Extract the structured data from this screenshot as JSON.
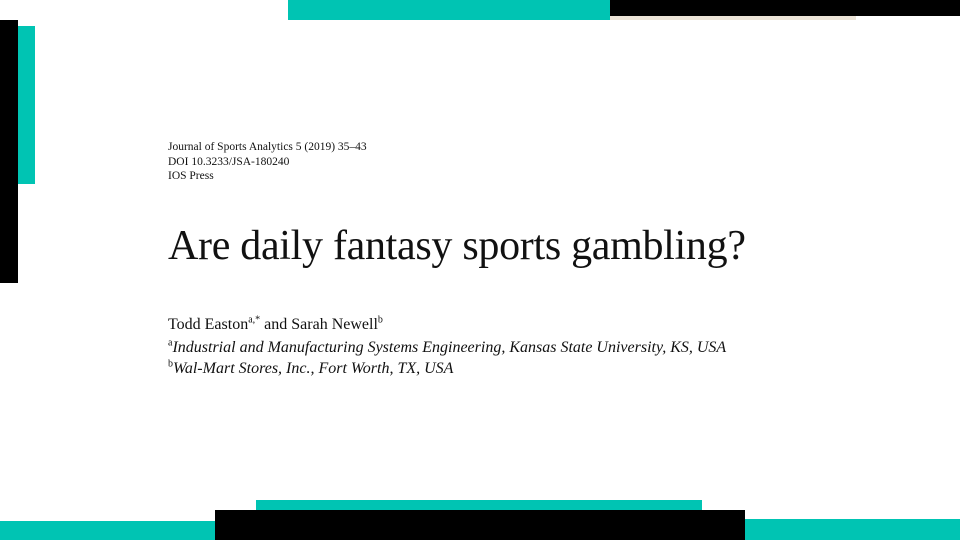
{
  "journal": {
    "citation": "Journal of Sports Analytics 5 (2019) 35–43",
    "doi": "DOI 10.3233/JSA-180240",
    "publisher": "IOS Press"
  },
  "paper": {
    "title": "Are daily fantasy sports gambling?",
    "authors": [
      {
        "name": "Todd Easton",
        "marks": "a,*"
      },
      {
        "name": "Sarah Newell",
        "marks": "b"
      }
    ],
    "author_separator": " and ",
    "affiliations": [
      {
        "mark": "a",
        "text": "Industrial and Manufacturing Systems Engineering, Kansas State University, KS, USA"
      },
      {
        "mark": "b",
        "text": "Wal-Mart Stores, Inc., Fort Worth, TX, USA"
      }
    ]
  },
  "colors": {
    "accent": "#00c4b3",
    "dark": "#000000",
    "beige": "#ece4d8"
  }
}
